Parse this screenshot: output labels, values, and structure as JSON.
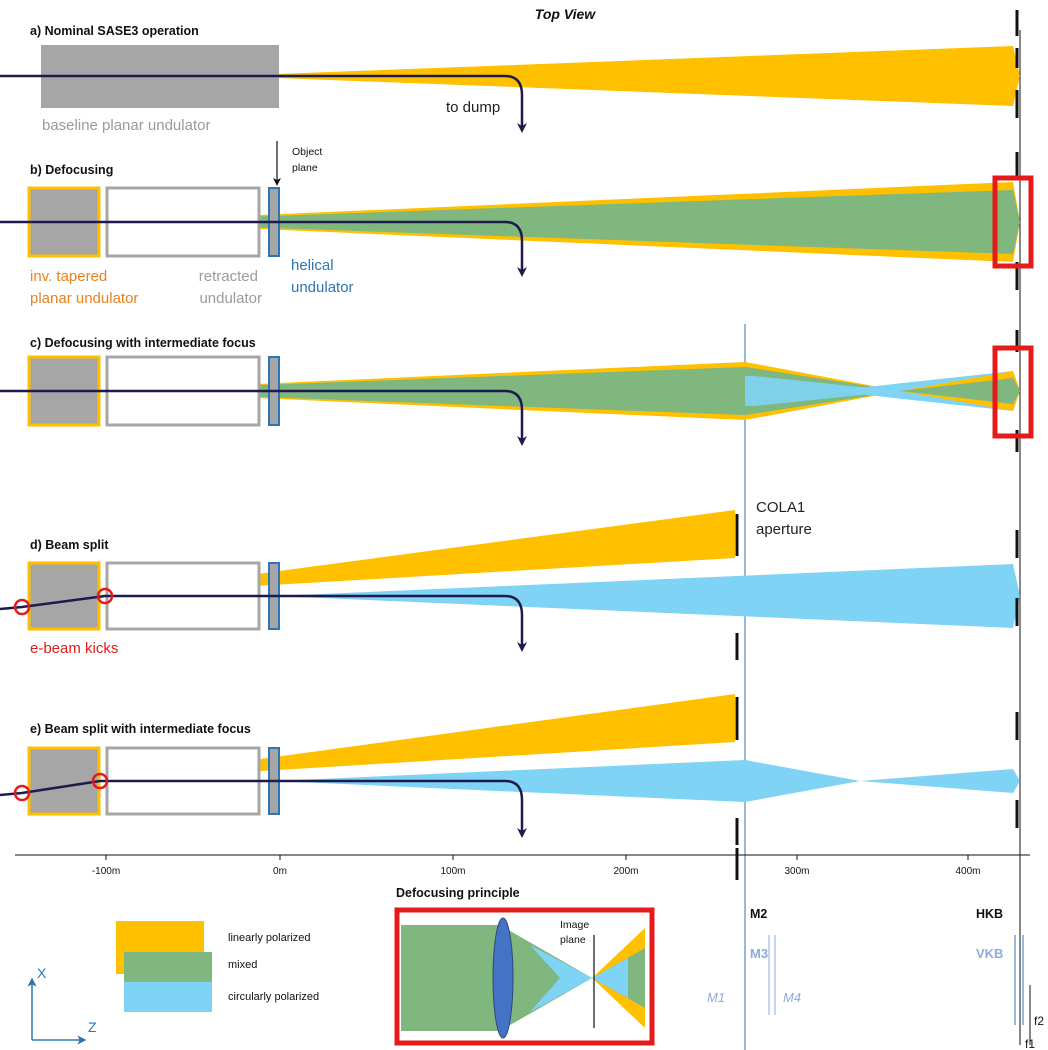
{
  "title": "Top View",
  "colors": {
    "linear": "#ffc000",
    "mixed": "#7fb77e",
    "circular": "#7fd3f5",
    "ebeam": "#1f1a4e",
    "undulator_gray": "#a6a6a6",
    "red": "#e31b1b",
    "helical_blue": "#2e75b6"
  },
  "rows": {
    "a": {
      "title": "a) Nominal SASE3 operation",
      "undulator_label": "baseline planar undulator",
      "dump_label": "to dump"
    },
    "b": {
      "title": "b) Defocusing",
      "object_plane_line1": "Object",
      "object_plane_line2": "plane",
      "label_orange_1": "inv. tapered",
      "label_orange_2": "planar undulator",
      "label_gray_1": "retracted",
      "label_gray_2": "undulator",
      "label_blue_1": "helical",
      "label_blue_2": "undulator"
    },
    "c": {
      "title": "c) Defocusing  with intermediate focus"
    },
    "d": {
      "title": "d) Beam split",
      "kicks_label": "e-beam kicks",
      "aperture_line1": "COLA1",
      "aperture_line2": "aperture"
    },
    "e": {
      "title": "e) Beam split with intermediate focus"
    }
  },
  "axis": {
    "ticks": [
      "-100m",
      "0m",
      "100m",
      "200m",
      "300m",
      "400m"
    ]
  },
  "mirrors": {
    "m2": "M2",
    "m3": "M3",
    "m1": "M1",
    "m4": "M4",
    "hkb": "HKB",
    "vkb": "VKB",
    "f2": "f2",
    "f1": "f1"
  },
  "principle": {
    "title": "Defocusing principle",
    "image_plane_1": "Image",
    "image_plane_2": "plane"
  },
  "legend": {
    "linear": "linearly polarized",
    "mixed": "mixed",
    "circular": "circularly polarized"
  },
  "axes_icon": {
    "x": "X",
    "z": "Z"
  }
}
